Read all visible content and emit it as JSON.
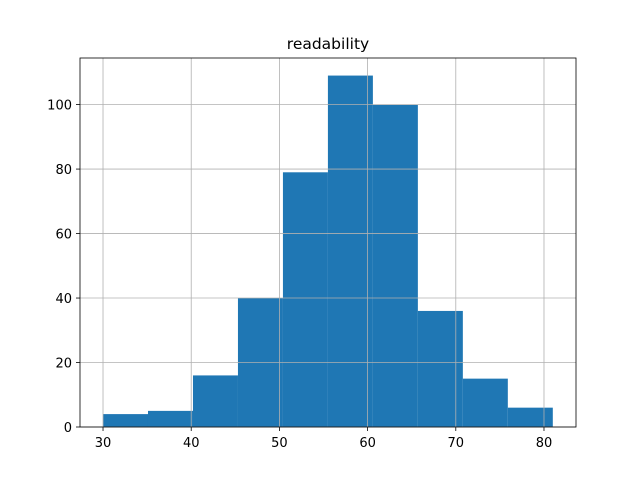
{
  "chart_data": {
    "type": "histogram",
    "title": "readability",
    "bins": [
      30,
      35.1,
      40.2,
      45.3,
      50.4,
      55.5,
      60.6,
      65.7,
      70.8,
      75.9,
      81
    ],
    "values": [
      4,
      5,
      16,
      40,
      79,
      109,
      100,
      36,
      15,
      6
    ],
    "color": "#1f77b4",
    "xlim": [
      27.39,
      83.63
    ],
    "xticks": [
      30,
      40,
      50,
      60,
      70,
      80
    ],
    "ylim": [
      0,
      114.45
    ],
    "yticks": [
      0,
      20,
      40,
      60,
      80,
      100
    ],
    "grid": true
  }
}
